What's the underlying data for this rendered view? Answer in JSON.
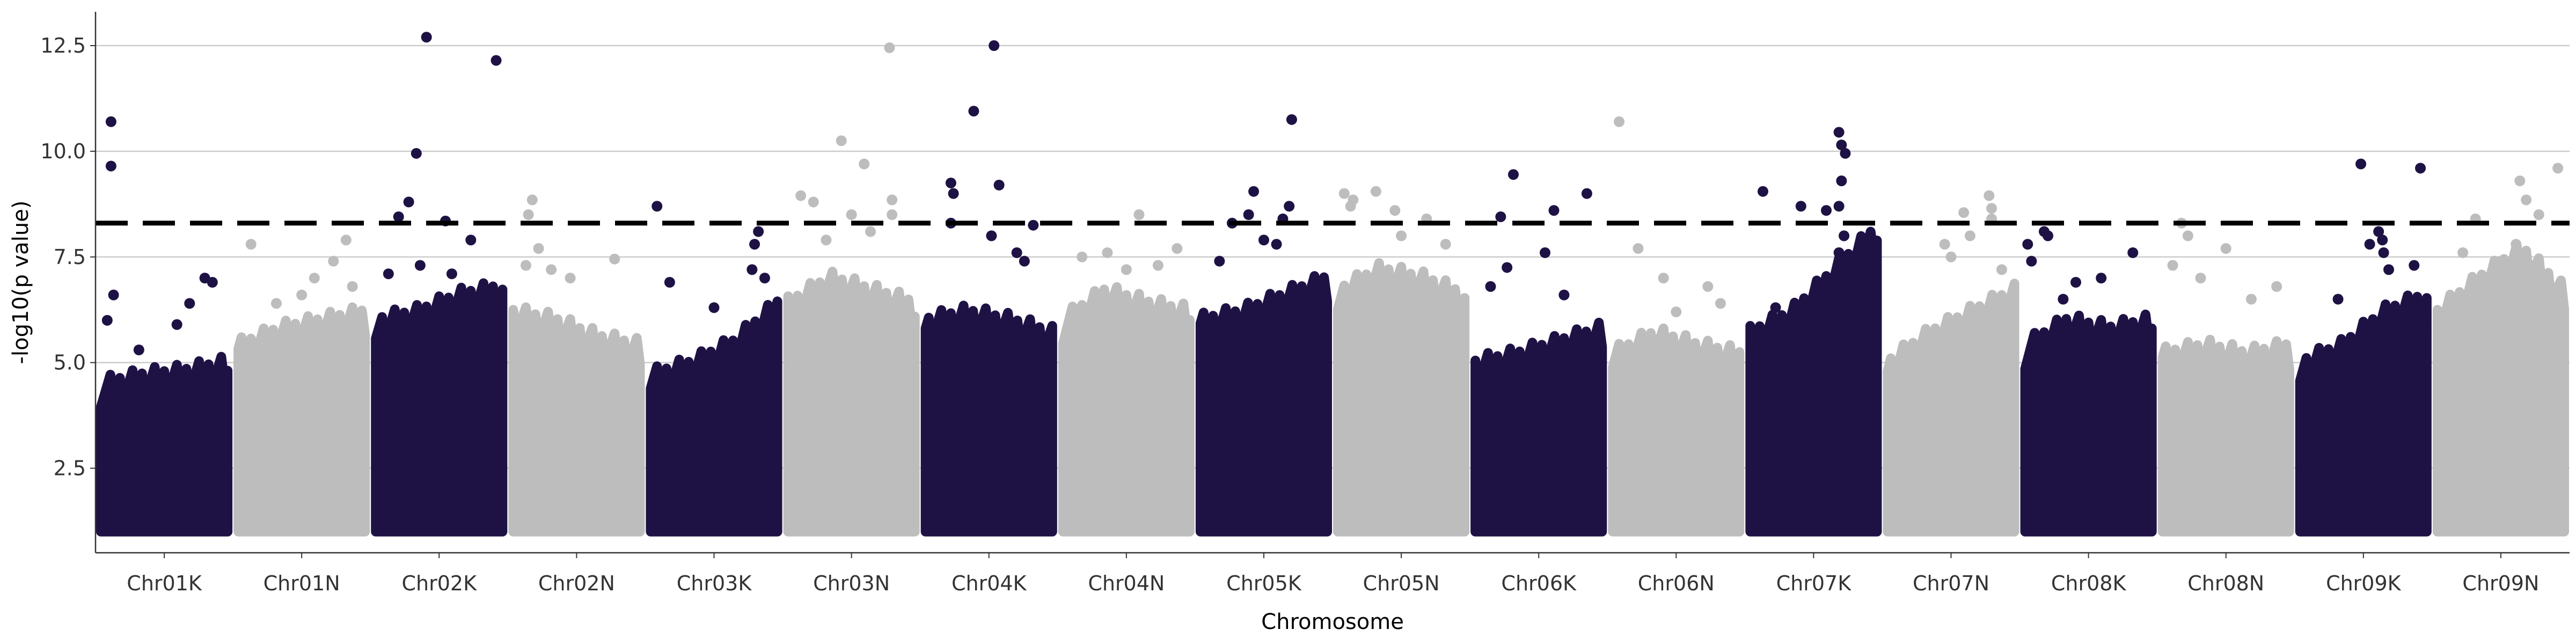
{
  "chart_data": {
    "type": "scatter",
    "subtype": "manhattan",
    "title": "",
    "xlabel": "Chromosome",
    "ylabel": "-log10(p value)",
    "ylim": [
      0.5,
      13.3
    ],
    "y_ticks": [
      2.5,
      5.0,
      7.5,
      10.0,
      12.5
    ],
    "y_tick_labels": [
      "2.5",
      "5.0",
      "7.5",
      "10.0",
      "12.5"
    ],
    "gridlines": "horizontal, major only",
    "threshold": 8.3,
    "threshold_style": "dashed black line",
    "dense_floor": 1.0,
    "colors": {
      "odd": "#1e1245",
      "even": "#bdbdbd",
      "threshold": "#000000",
      "grid": "#cccccc",
      "axis": "#333333"
    },
    "categories": [
      "Chr01K",
      "Chr01N",
      "Chr02K",
      "Chr02N",
      "Chr03K",
      "Chr03N",
      "Chr04K",
      "Chr04N",
      "Chr05K",
      "Chr05N",
      "Chr06K",
      "Chr06N",
      "Chr07K",
      "Chr07N",
      "Chr08K",
      "Chr08N",
      "Chr09K",
      "Chr09N"
    ],
    "series": [
      {
        "chromosome": "Chr01K",
        "dense_top": [
          4.3,
          4.5,
          4.6,
          4.8
        ],
        "points": [
          [
            0.08,
            10.7
          ],
          [
            0.08,
            9.65
          ],
          [
            0.1,
            6.6
          ],
          [
            0.05,
            6.0
          ],
          [
            0.82,
            7.0
          ],
          [
            0.88,
            6.9
          ],
          [
            0.7,
            6.4
          ],
          [
            0.6,
            5.9
          ],
          [
            0.3,
            5.3
          ]
        ]
      },
      {
        "chromosome": "Chr01N",
        "dense_top": [
          5.2,
          5.6,
          5.8,
          6.0
        ],
        "points": [
          [
            0.1,
            7.8
          ],
          [
            0.85,
            7.9
          ],
          [
            0.75,
            7.4
          ],
          [
            0.5,
            6.6
          ],
          [
            0.3,
            6.4
          ],
          [
            0.9,
            6.8
          ],
          [
            0.6,
            7.0
          ]
        ]
      },
      {
        "chromosome": "Chr02K",
        "dense_top": [
          5.8,
          6.0,
          6.4,
          6.6
        ],
        "points": [
          [
            0.4,
            12.7
          ],
          [
            0.95,
            12.15
          ],
          [
            0.32,
            9.95
          ],
          [
            0.26,
            8.8
          ],
          [
            0.18,
            8.45
          ],
          [
            0.55,
            8.35
          ],
          [
            0.75,
            7.9
          ],
          [
            0.35,
            7.3
          ],
          [
            0.1,
            7.1
          ],
          [
            0.6,
            7.1
          ]
        ]
      },
      {
        "chromosome": "Chr02N",
        "dense_top": [
          6.0,
          5.8,
          5.4,
          5.2
        ],
        "points": [
          [
            0.15,
            8.85
          ],
          [
            0.12,
            8.5
          ],
          [
            0.2,
            7.7
          ],
          [
            0.1,
            7.3
          ],
          [
            0.3,
            7.2
          ],
          [
            0.45,
            7.0
          ],
          [
            0.8,
            7.45
          ]
        ]
      },
      {
        "chromosome": "Chr03K",
        "dense_top": [
          4.5,
          4.8,
          5.3,
          6.2
        ],
        "points": [
          [
            0.05,
            8.7
          ],
          [
            0.15,
            6.9
          ],
          [
            0.8,
            7.2
          ],
          [
            0.82,
            7.8
          ],
          [
            0.85,
            8.1
          ],
          [
            0.9,
            7.0
          ],
          [
            0.5,
            6.3
          ]
        ]
      },
      {
        "chromosome": "Chr03N",
        "dense_top": [
          6.2,
          6.8,
          6.5,
          6.2
        ],
        "points": [
          [
            0.8,
            12.45
          ],
          [
            0.42,
            10.25
          ],
          [
            0.6,
            9.7
          ],
          [
            0.82,
            8.85
          ],
          [
            0.1,
            8.95
          ],
          [
            0.2,
            8.8
          ],
          [
            0.82,
            8.5
          ],
          [
            0.5,
            8.5
          ],
          [
            0.3,
            7.9
          ],
          [
            0.65,
            8.1
          ]
        ]
      },
      {
        "chromosome": "Chr04K",
        "dense_top": [
          5.8,
          6.0,
          5.8,
          5.5
        ],
        "points": [
          [
            0.54,
            12.5
          ],
          [
            0.38,
            10.95
          ],
          [
            0.2,
            9.25
          ],
          [
            0.22,
            9.0
          ],
          [
            0.58,
            9.2
          ],
          [
            0.52,
            8.0
          ],
          [
            0.2,
            8.3
          ],
          [
            0.72,
            7.6
          ],
          [
            0.85,
            8.25
          ],
          [
            0.78,
            7.4
          ]
        ]
      },
      {
        "chromosome": "Chr04N",
        "dense_top": [
          5.8,
          6.5,
          6.2,
          6.0
        ],
        "points": [
          [
            0.6,
            8.5
          ],
          [
            0.35,
            7.6
          ],
          [
            0.15,
            7.5
          ],
          [
            0.5,
            7.2
          ],
          [
            0.75,
            7.3
          ],
          [
            0.9,
            7.7
          ]
        ]
      },
      {
        "chromosome": "Chr05K",
        "dense_top": [
          5.8,
          6.0,
          6.4,
          6.8
        ],
        "points": [
          [
            0.72,
            10.75
          ],
          [
            0.42,
            9.05
          ],
          [
            0.38,
            8.5
          ],
          [
            0.65,
            8.4
          ],
          [
            0.7,
            8.7
          ],
          [
            0.25,
            8.3
          ],
          [
            0.5,
            7.9
          ],
          [
            0.15,
            7.4
          ],
          [
            0.6,
            7.8
          ]
        ]
      },
      {
        "chromosome": "Chr05N",
        "dense_top": [
          6.5,
          7.0,
          6.8,
          6.4
        ],
        "points": [
          [
            0.05,
            9.0
          ],
          [
            0.12,
            8.85
          ],
          [
            0.3,
            9.05
          ],
          [
            0.45,
            8.6
          ],
          [
            0.1,
            8.7
          ],
          [
            0.7,
            8.4
          ],
          [
            0.5,
            8.0
          ],
          [
            0.85,
            7.8
          ]
        ]
      },
      {
        "chromosome": "Chr06K",
        "dense_top": [
          4.8,
          5.0,
          5.3,
          5.6
        ],
        "points": [
          [
            0.3,
            9.45
          ],
          [
            0.88,
            9.0
          ],
          [
            0.62,
            8.6
          ],
          [
            0.2,
            8.45
          ],
          [
            0.55,
            7.6
          ],
          [
            0.25,
            7.25
          ],
          [
            0.12,
            6.8
          ],
          [
            0.7,
            6.6
          ]
        ]
      },
      {
        "chromosome": "Chr06N",
        "dense_top": [
          5.0,
          5.5,
          5.2,
          5.0
        ],
        "points": [
          [
            0.05,
            10.7
          ],
          [
            0.2,
            7.7
          ],
          [
            0.4,
            7.0
          ],
          [
            0.75,
            6.8
          ],
          [
            0.85,
            6.4
          ],
          [
            0.5,
            6.2
          ]
        ]
      },
      {
        "chromosome": "Chr07K",
        "dense_top": [
          5.5,
          6.0,
          7.0,
          8.0
        ],
        "points": [
          [
            0.7,
            10.45
          ],
          [
            0.72,
            10.15
          ],
          [
            0.75,
            9.95
          ],
          [
            0.1,
            9.05
          ],
          [
            0.72,
            9.3
          ],
          [
            0.7,
            8.7
          ],
          [
            0.6,
            8.6
          ],
          [
            0.4,
            8.7
          ],
          [
            0.74,
            8.0
          ],
          [
            0.7,
            7.6
          ],
          [
            0.2,
            6.3
          ]
        ]
      },
      {
        "chromosome": "Chr07N",
        "dense_top": [
          4.8,
          5.5,
          6.0,
          6.5
        ],
        "points": [
          [
            0.8,
            8.95
          ],
          [
            0.82,
            8.65
          ],
          [
            0.82,
            8.4
          ],
          [
            0.6,
            8.55
          ],
          [
            0.65,
            8.0
          ],
          [
            0.45,
            7.8
          ],
          [
            0.5,
            7.5
          ],
          [
            0.9,
            7.2
          ]
        ]
      },
      {
        "chromosome": "Chr08K",
        "dense_top": [
          5.2,
          5.8,
          5.6,
          5.8
        ],
        "points": [
          [
            0.15,
            8.1
          ],
          [
            0.18,
            8.0
          ],
          [
            0.02,
            7.8
          ],
          [
            0.05,
            7.4
          ],
          [
            0.85,
            7.6
          ],
          [
            0.6,
            7.0
          ],
          [
            0.4,
            6.9
          ],
          [
            0.3,
            6.5
          ]
        ]
      },
      {
        "chromosome": "Chr08N",
        "dense_top": [
          5.0,
          5.2,
          5.0,
          5.2
        ],
        "points": [
          [
            0.15,
            8.3
          ],
          [
            0.2,
            8.0
          ],
          [
            0.08,
            7.3
          ],
          [
            0.3,
            7.0
          ],
          [
            0.5,
            7.7
          ],
          [
            0.9,
            6.8
          ],
          [
            0.7,
            6.5
          ]
        ]
      },
      {
        "chromosome": "Chr09K",
        "dense_top": [
          4.8,
          5.2,
          6.0,
          6.4
        ],
        "points": [
          [
            0.48,
            9.7
          ],
          [
            0.95,
            9.6
          ],
          [
            0.62,
            8.1
          ],
          [
            0.65,
            7.9
          ],
          [
            0.66,
            7.6
          ],
          [
            0.7,
            7.2
          ],
          [
            0.55,
            7.8
          ],
          [
            0.9,
            7.3
          ],
          [
            0.3,
            6.5
          ]
        ]
      },
      {
        "chromosome": "Chr09N",
        "dense_top": [
          6.0,
          6.8,
          7.5,
          6.5
        ],
        "points": [
          [
            0.65,
            9.3
          ],
          [
            0.7,
            8.85
          ],
          [
            0.8,
            8.5
          ],
          [
            0.95,
            9.6
          ],
          [
            0.3,
            8.4
          ],
          [
            0.62,
            7.8
          ],
          [
            0.2,
            7.6
          ],
          [
            0.5,
            7.4
          ]
        ]
      }
    ]
  }
}
